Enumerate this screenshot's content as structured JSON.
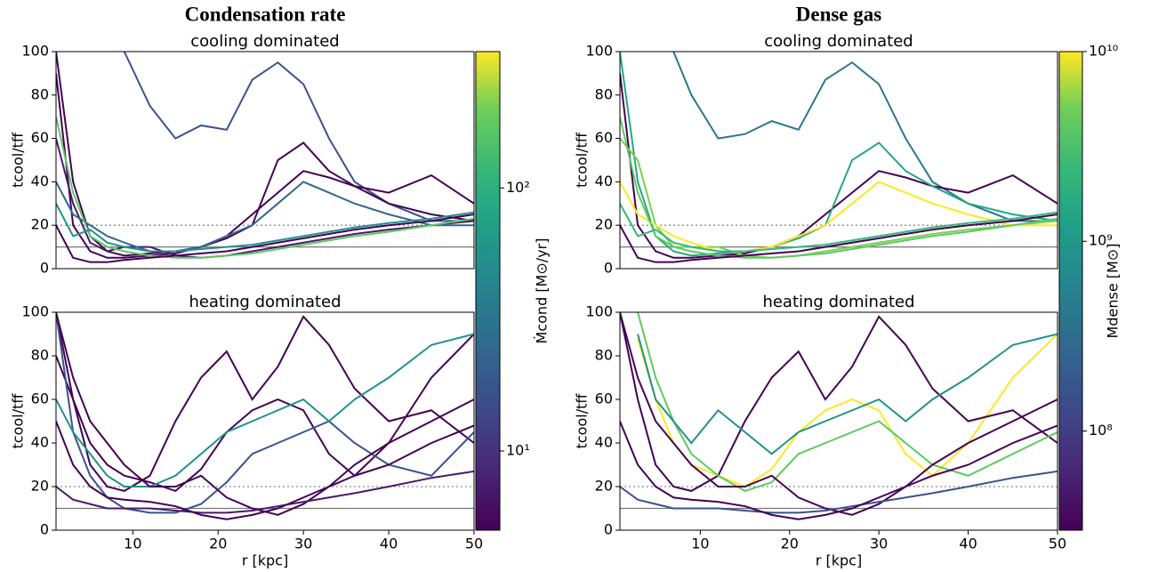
{
  "chart_data": [
    {
      "type": "line",
      "title": "Condensation rate",
      "subtitle": "cooling dominated",
      "ylabel": "tcool/tff",
      "x": [
        1,
        3,
        5,
        7,
        9,
        12,
        15,
        18,
        21,
        24,
        27,
        30,
        33,
        36,
        40,
        45,
        50
      ],
      "xlim": [
        1,
        50
      ],
      "ylim": [
        0,
        100
      ],
      "yticks": [
        0,
        20,
        40,
        60,
        80,
        100
      ],
      "reference_lines": [
        {
          "value": 20,
          "style": "dotted"
        },
        {
          "value": 10,
          "style": "solid"
        }
      ],
      "colorbar": {
        "label": "Ṁcond [M⊙/yr]",
        "scale": "log",
        "clim": [
          5,
          330
        ],
        "ticks": [
          {
            "value": 10,
            "label": "10¹"
          },
          {
            "value": 100,
            "label": "10²"
          }
        ]
      },
      "series": [
        {
          "color": "#3b528b",
          "values": [
            null,
            null,
            null,
            null,
            100,
            75,
            60,
            66,
            64,
            87,
            95,
            85,
            60,
            40,
            30,
            22,
            22
          ]
        },
        {
          "color": "#440154",
          "values": [
            90,
            20,
            8,
            5,
            5,
            6,
            7,
            10,
            15,
            25,
            35,
            45,
            42,
            38,
            35,
            43,
            30
          ]
        },
        {
          "color": "#440154",
          "values": [
            100,
            40,
            15,
            8,
            6,
            7,
            8,
            10,
            14,
            20,
            50,
            58,
            45,
            38,
            30,
            25,
            22
          ]
        },
        {
          "color": "#481a6c",
          "values": [
            60,
            30,
            12,
            8,
            10,
            10,
            6,
            5,
            6,
            8,
            10,
            12,
            14,
            16,
            18,
            20,
            22
          ]
        },
        {
          "color": "#31688e",
          "values": [
            40,
            25,
            20,
            15,
            12,
            8,
            8,
            10,
            15,
            20,
            30,
            40,
            35,
            30,
            25,
            20,
            20
          ]
        },
        {
          "color": "#5ec962",
          "values": [
            70,
            35,
            15,
            10,
            8,
            6,
            5,
            5,
            6,
            7,
            9,
            11,
            13,
            15,
            17,
            20,
            23
          ]
        },
        {
          "color": "#440154",
          "values": [
            20,
            5,
            3,
            3,
            4,
            5,
            6,
            7,
            8,
            10,
            12,
            14,
            16,
            18,
            20,
            22,
            25
          ]
        },
        {
          "color": "#21918c",
          "values": [
            30,
            15,
            18,
            12,
            10,
            8,
            8,
            9,
            10,
            11,
            13,
            15,
            17,
            19,
            21,
            23,
            26
          ]
        }
      ]
    },
    {
      "type": "line",
      "subtitle": "heating dominated",
      "ylabel": "tcool/tff",
      "xlabel": "r [kpc]",
      "x": [
        1,
        3,
        5,
        7,
        9,
        12,
        15,
        18,
        21,
        24,
        27,
        30,
        33,
        36,
        40,
        45,
        50
      ],
      "xlim": [
        1,
        50
      ],
      "ylim": [
        0,
        100
      ],
      "yticks": [
        0,
        20,
        40,
        60,
        80,
        100
      ],
      "xticks": [
        10,
        20,
        30,
        40,
        50
      ],
      "reference_lines": [
        {
          "value": 20,
          "style": "dotted"
        },
        {
          "value": 10,
          "style": "solid"
        }
      ],
      "series": [
        {
          "color": "#440154",
          "values": [
            80,
            60,
            40,
            30,
            25,
            22,
            18,
            28,
            45,
            55,
            60,
            55,
            35,
            25,
            40,
            70,
            90
          ]
        },
        {
          "color": "#440154",
          "values": [
            100,
            60,
            30,
            20,
            18,
            25,
            50,
            70,
            82,
            60,
            75,
            98,
            85,
            65,
            50,
            55,
            40
          ]
        },
        {
          "color": "#3b528b",
          "values": [
            100,
            45,
            25,
            15,
            10,
            8,
            8,
            12,
            22,
            35,
            40,
            45,
            50,
            40,
            30,
            25,
            45
          ]
        },
        {
          "color": "#21918c",
          "values": [
            60,
            45,
            35,
            25,
            20,
            20,
            25,
            35,
            45,
            50,
            55,
            60,
            50,
            60,
            70,
            85,
            90
          ]
        },
        {
          "color": "#440154",
          "values": [
            100,
            70,
            50,
            40,
            30,
            20,
            20,
            25,
            15,
            10,
            7,
            12,
            20,
            30,
            40,
            50,
            60
          ]
        },
        {
          "color": "#481a6c",
          "values": [
            20,
            14,
            12,
            10,
            10,
            10,
            9,
            8,
            8,
            9,
            11,
            13,
            15,
            17,
            20,
            24,
            27
          ]
        },
        {
          "color": "#440154",
          "values": [
            50,
            30,
            20,
            15,
            14,
            13,
            11,
            7,
            5,
            7,
            10,
            15,
            20,
            25,
            30,
            40,
            48
          ]
        }
      ]
    },
    {
      "type": "line",
      "title": "Dense gas",
      "subtitle": "cooling dominated",
      "ylabel": "tcool/tff",
      "x": [
        1,
        3,
        5,
        7,
        9,
        12,
        15,
        18,
        21,
        24,
        27,
        30,
        33,
        36,
        40,
        45,
        50
      ],
      "xlim": [
        1,
        50
      ],
      "ylim": [
        0,
        100
      ],
      "yticks": [
        0,
        20,
        40,
        60,
        80,
        100
      ],
      "reference_lines": [
        {
          "value": 20,
          "style": "dotted"
        },
        {
          "value": 10,
          "style": "solid"
        }
      ],
      "colorbar": {
        "label": "Mdense [M⊙]",
        "scale": "log",
        "clim": [
          30000000,
          10000000000
        ],
        "ticks": [
          {
            "value": 100000000,
            "label": "10⁸"
          },
          {
            "value": 1000000000,
            "label": "10⁹"
          },
          {
            "value": 10000000000,
            "label": "10¹⁰"
          }
        ]
      },
      "series": [
        {
          "color": "#2a788e",
          "values": [
            null,
            null,
            null,
            100,
            80,
            60,
            62,
            68,
            64,
            87,
            95,
            85,
            60,
            40,
            30,
            22,
            22
          ]
        },
        {
          "color": "#440154",
          "values": [
            90,
            20,
            8,
            5,
            5,
            6,
            7,
            10,
            15,
            25,
            35,
            45,
            42,
            38,
            35,
            43,
            30
          ]
        },
        {
          "color": "#22a884",
          "values": [
            100,
            40,
            15,
            8,
            6,
            7,
            8,
            10,
            14,
            20,
            50,
            58,
            45,
            38,
            30,
            25,
            22
          ]
        },
        {
          "color": "#7ad151",
          "values": [
            60,
            50,
            20,
            10,
            10,
            10,
            6,
            5,
            6,
            8,
            10,
            12,
            14,
            16,
            18,
            20,
            22
          ]
        },
        {
          "color": "#fde725",
          "values": [
            40,
            25,
            20,
            15,
            12,
            8,
            8,
            10,
            15,
            20,
            30,
            40,
            35,
            30,
            25,
            20,
            20
          ]
        },
        {
          "color": "#5ec962",
          "values": [
            70,
            35,
            15,
            10,
            8,
            6,
            5,
            5,
            6,
            7,
            9,
            11,
            13,
            15,
            17,
            20,
            23
          ]
        },
        {
          "color": "#440154",
          "values": [
            20,
            5,
            3,
            3,
            4,
            5,
            6,
            7,
            8,
            10,
            12,
            14,
            16,
            18,
            20,
            22,
            25
          ]
        },
        {
          "color": "#35b779",
          "values": [
            30,
            15,
            18,
            12,
            10,
            8,
            8,
            9,
            10,
            11,
            13,
            15,
            17,
            19,
            21,
            23,
            26
          ]
        }
      ]
    },
    {
      "type": "line",
      "subtitle": "heating dominated",
      "ylabel": "tcool/tff",
      "xlabel": "r [kpc]",
      "x": [
        1,
        3,
        5,
        7,
        9,
        12,
        15,
        18,
        21,
        24,
        27,
        30,
        33,
        36,
        40,
        45,
        50
      ],
      "xlim": [
        1,
        50
      ],
      "ylim": [
        0,
        100
      ],
      "yticks": [
        0,
        20,
        40,
        60,
        80,
        100
      ],
      "xticks": [
        10,
        20,
        30,
        40,
        50
      ],
      "reference_lines": [
        {
          "value": 20,
          "style": "dotted"
        },
        {
          "value": 10,
          "style": "solid"
        }
      ],
      "series": [
        {
          "color": "#fde725",
          "values": [
            null,
            88,
            60,
            40,
            30,
            25,
            20,
            28,
            45,
            55,
            60,
            55,
            35,
            25,
            40,
            70,
            90
          ]
        },
        {
          "color": "#440154",
          "values": [
            100,
            60,
            30,
            20,
            18,
            25,
            50,
            70,
            82,
            60,
            75,
            98,
            85,
            65,
            50,
            55,
            40
          ]
        },
        {
          "color": "#5ec962",
          "values": [
            null,
            100,
            70,
            50,
            35,
            25,
            18,
            22,
            35,
            40,
            45,
            50,
            40,
            30,
            25,
            35,
            45
          ]
        },
        {
          "color": "#21918c",
          "values": [
            null,
            90,
            60,
            50,
            40,
            55,
            45,
            35,
            45,
            50,
            55,
            60,
            50,
            60,
            70,
            85,
            90
          ]
        },
        {
          "color": "#440154",
          "values": [
            100,
            70,
            50,
            40,
            30,
            20,
            20,
            25,
            15,
            10,
            7,
            12,
            20,
            30,
            40,
            50,
            60
          ]
        },
        {
          "color": "#3b528b",
          "values": [
            20,
            14,
            12,
            10,
            10,
            10,
            9,
            8,
            8,
            9,
            11,
            13,
            15,
            17,
            20,
            24,
            27
          ]
        },
        {
          "color": "#440154",
          "values": [
            50,
            30,
            20,
            15,
            14,
            13,
            11,
            7,
            5,
            7,
            10,
            15,
            20,
            25,
            30,
            40,
            48
          ]
        }
      ]
    }
  ]
}
